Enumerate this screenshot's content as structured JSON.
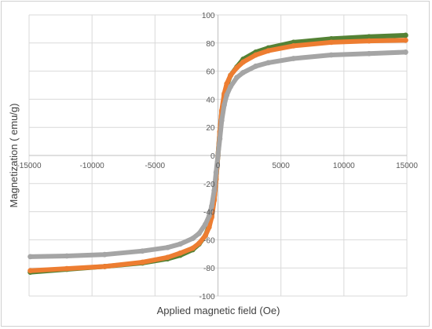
{
  "chart_data": {
    "type": "scatter",
    "title": "",
    "xlabel": "Applied magnetic field (Oe)",
    "ylabel": "Magnetization ( emu/g)",
    "xlim": [
      -15000,
      15000
    ],
    "ylim": [
      -100,
      100
    ],
    "x_ticks": [
      -15000,
      -10000,
      -5000,
      0,
      5000,
      10000,
      15000
    ],
    "y_ticks": [
      -100,
      -80,
      -60,
      -40,
      -20,
      0,
      20,
      40,
      60,
      80,
      100
    ],
    "x_tick_labels": [
      "-15000",
      "-10000",
      "-5000",
      "0",
      "5000",
      "10000",
      "15000"
    ],
    "y_tick_labels": [
      "-100",
      "-80",
      "-60",
      "-40",
      "-20",
      "0",
      "20",
      "40",
      "60",
      "80",
      "100"
    ],
    "grid": true,
    "legend": "none",
    "series": [
      {
        "color": "#548235",
        "x": [
          -14900,
          -12000,
          -9000,
          -6000,
          -4000,
          -3000,
          -2000,
          -1500,
          -1000,
          -700,
          -500,
          -300,
          -150,
          0,
          150,
          300,
          500,
          700,
          1000,
          1500,
          2000,
          3000,
          4000,
          6000,
          9000,
          12000,
          14900
        ],
        "y": [
          -83,
          -81,
          -79,
          -76.5,
          -73.5,
          -71,
          -67,
          -63,
          -57,
          -50,
          -43,
          -31,
          -17,
          0,
          17,
          31,
          43,
          50,
          57,
          63,
          68.5,
          73.5,
          76.5,
          80.5,
          83,
          84.5,
          85.5
        ]
      },
      {
        "color": "#ed7d31",
        "x": [
          -14900,
          -12000,
          -9000,
          -6000,
          -4000,
          -3000,
          -2000,
          -1500,
          -1000,
          -700,
          -500,
          -300,
          -150,
          0,
          150,
          300,
          500,
          700,
          1000,
          1500,
          2000,
          3000,
          4000,
          6000,
          9000,
          12000,
          14900
        ],
        "y": [
          -82,
          -80.5,
          -79,
          -76,
          -72.5,
          -69.5,
          -66,
          -62.5,
          -57,
          -51,
          -44,
          -32,
          -17,
          0,
          17,
          32,
          44,
          51,
          57,
          62.5,
          66.5,
          71.5,
          74.5,
          78,
          80.5,
          81.5,
          82
        ]
      },
      {
        "color": "#a5a5a5",
        "x": [
          -14900,
          -12000,
          -9000,
          -6000,
          -4000,
          -3000,
          -2000,
          -1500,
          -1000,
          -700,
          -500,
          -300,
          -150,
          0,
          150,
          300,
          500,
          700,
          1000,
          1500,
          2000,
          3000,
          4000,
          6000,
          9000,
          12000,
          14900
        ],
        "y": [
          -72,
          -71.5,
          -70.5,
          -68,
          -65.5,
          -63,
          -59,
          -55.5,
          -49,
          -43,
          -36,
          -25,
          -12,
          0,
          12,
          25,
          36,
          43,
          49,
          55.5,
          59,
          63.5,
          66,
          69,
          71.5,
          72.5,
          73.5
        ]
      }
    ]
  }
}
